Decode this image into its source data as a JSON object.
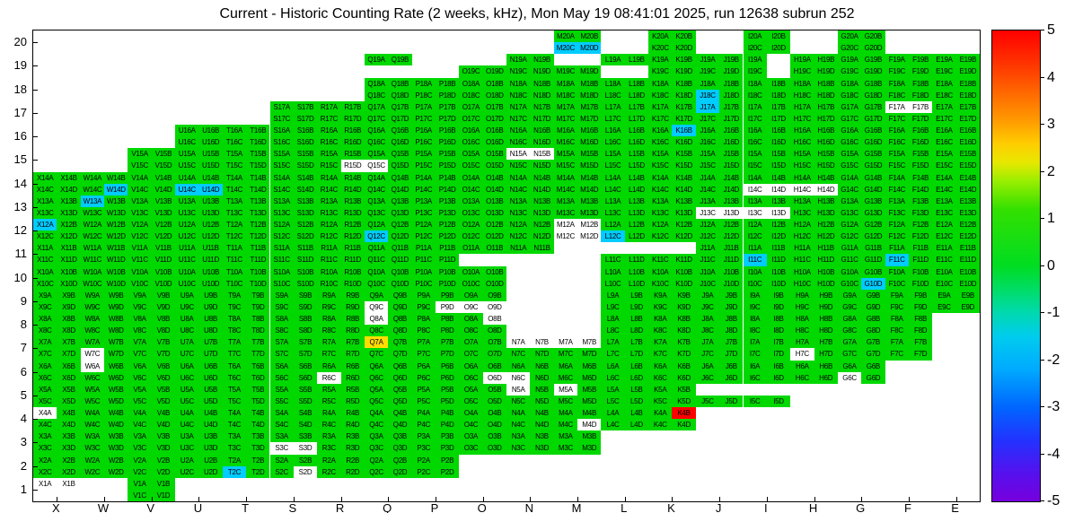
{
  "title": "Current - Historic Counting Rate (2 weeks, kHz), Mon May 19 08:41:01 2025, run 12638 subrun 252",
  "chart_data": {
    "type": "heatmap",
    "title": "Current - Historic Counting Rate (2 weeks, kHz), Mon May 19 08:41:01 2025, run 12638 subrun 252",
    "x_categories": [
      "X",
      "W",
      "V",
      "U",
      "T",
      "S",
      "R",
      "Q",
      "P",
      "O",
      "N",
      "M",
      "L",
      "K",
      "J",
      "I",
      "H",
      "G",
      "F",
      "E"
    ],
    "y_categories": [
      20,
      19,
      18,
      17,
      16,
      15,
      14,
      13,
      12,
      11,
      10,
      9,
      8,
      7,
      6,
      5,
      4,
      3,
      2,
      1
    ],
    "cell_suffixes": {
      "top": [
        "A",
        "B"
      ],
      "bottom": [
        "C",
        "D"
      ]
    },
    "value_range": [
      -5,
      5
    ],
    "legend_position": "right",
    "grid": false,
    "default_value_key": "green",
    "palette": {
      "green": "#00d800",
      "cyan": "#00ccff",
      "yellow": "#ffdd00",
      "red": "#ff0000",
      "white": "#ffffff"
    },
    "mask_legend": {
      "1": "both half-cells present",
      "0": "no cell",
      "L": "left half only",
      "R": "right half only"
    },
    "rows": [
      {
        "row": 20,
        "ab": "00000000000101010100",
        "cd": "00000000000101010100"
      },
      {
        "row": 19,
        "ab": "000000010010111L1111",
        "cd": "000000000111011L1111"
      },
      {
        "row": 18,
        "ab": "00000001111111111111",
        "cd": "00000001111111111111"
      },
      {
        "row": 17,
        "ab": "00000111111111111111",
        "cd": "00000111111111111111"
      },
      {
        "row": 16,
        "ab": "00011111111111111111",
        "cd": "00011111111111111111"
      },
      {
        "row": 15,
        "ab": "00111111111111111111",
        "cd": "00111111111111111111"
      },
      {
        "row": 14,
        "ab": "11111111111111111111",
        "cd": "11111111111111111111"
      },
      {
        "row": 13,
        "ab": "11111111111111111111",
        "cd": "11111111111111111111"
      },
      {
        "row": 12,
        "ab": "11111111111111111111",
        "cd": "11111111111111111111"
      },
      {
        "row": 11,
        "ab": "11111111111000111111",
        "cd": "11111111100011111111"
      },
      {
        "row": 10,
        "ab": "11111111110011111111",
        "cd": "11111111110011111111"
      },
      {
        "row": 9,
        "ab": "11111111110011111111",
        "cd": "11111111110011111111"
      },
      {
        "row": 8,
        "ab": "11111111110011111110",
        "cd": "11111111110011111110"
      },
      {
        "row": 7,
        "ab": "11111111111111111110",
        "cd": "11111111111111111110"
      },
      {
        "row": 6,
        "ab": "11111111111111111100",
        "cd": "11111111111111111100"
      },
      {
        "row": 5,
        "ab": "11111111111111000000",
        "cd": "11111111111111110000"
      },
      {
        "row": 4,
        "ab": "11111111111111000000",
        "cd": "11111111111111000000"
      },
      {
        "row": 3,
        "ab": "11111111111100000000",
        "cd": "11111111111100000000"
      },
      {
        "row": 2,
        "ab": "11111111100000000000",
        "cd": "11111111100000000000"
      },
      {
        "row": 1,
        "ab": "10100000000000000000",
        "cd": "00100000000000000000"
      }
    ],
    "overrides": {
      "M20C": "cyan",
      "M20D": "cyan",
      "J18C": "cyan",
      "J17A": "cyan",
      "F17A": "white",
      "F17B": "white",
      "K16B": "cyan",
      "N15A": "white",
      "N15B": "white",
      "R15D": "white",
      "Q15C": "white",
      "W14D": "cyan",
      "U14C": "cyan",
      "U14D": "cyan",
      "I14C": "white",
      "I14D": "white",
      "H14C": "white",
      "H14D": "white",
      "W13A": "cyan",
      "J13C": "white",
      "J13D": "white",
      "I13C": "white",
      "I13D": "white",
      "X12A": "cyan",
      "Q12C": "cyan",
      "L12C": "cyan",
      "M12A": "white",
      "M12B": "white",
      "M12C": "white",
      "M12D": "white",
      "I11C": "cyan",
      "F11C": "cyan",
      "G10D": "cyan",
      "Q9C": "white",
      "P9D": "white",
      "O9C": "white",
      "O9D": "white",
      "Q8A": "white",
      "O8B": "white",
      "Q7A": "yellow",
      "N7A": "white",
      "N7B": "white",
      "M7A": "white",
      "M7B": "white",
      "W7C": "white",
      "H7C": "white",
      "W6A": "white",
      "R6C": "white",
      "O6D": "white",
      "N6C": "white",
      "G6C": "white",
      "N5A": "white",
      "M5A": "white",
      "X4A": "white",
      "M4D": "white",
      "K4B": "red",
      "S3C": "white",
      "S3D": "white",
      "T2C": "cyan",
      "S2D": "white",
      "X1A": "white",
      "X1B": "white"
    },
    "colorbar": {
      "ticks": [
        5,
        4,
        3,
        2,
        1,
        0,
        -1,
        -2,
        -3,
        -4,
        -5
      ],
      "gradient": [
        {
          "pos": 0.0,
          "color": "#ff0000"
        },
        {
          "pos": 0.07,
          "color": "#ff3300"
        },
        {
          "pos": 0.13,
          "color": "#ff6600"
        },
        {
          "pos": 0.19,
          "color": "#ff9900"
        },
        {
          "pos": 0.24,
          "color": "#ffcc00"
        },
        {
          "pos": 0.28,
          "color": "#e8e800"
        },
        {
          "pos": 0.32,
          "color": "#99ee00"
        },
        {
          "pos": 0.38,
          "color": "#33e000"
        },
        {
          "pos": 0.5,
          "color": "#00dd22"
        },
        {
          "pos": 0.55,
          "color": "#00dd66"
        },
        {
          "pos": 0.6,
          "color": "#00d9b0"
        },
        {
          "pos": 0.65,
          "color": "#00ccee"
        },
        {
          "pos": 0.72,
          "color": "#00aaff"
        },
        {
          "pos": 0.8,
          "color": "#0066ff"
        },
        {
          "pos": 0.87,
          "color": "#2233ff"
        },
        {
          "pos": 0.94,
          "color": "#5511ee"
        },
        {
          "pos": 1.0,
          "color": "#7700dd"
        }
      ]
    }
  }
}
